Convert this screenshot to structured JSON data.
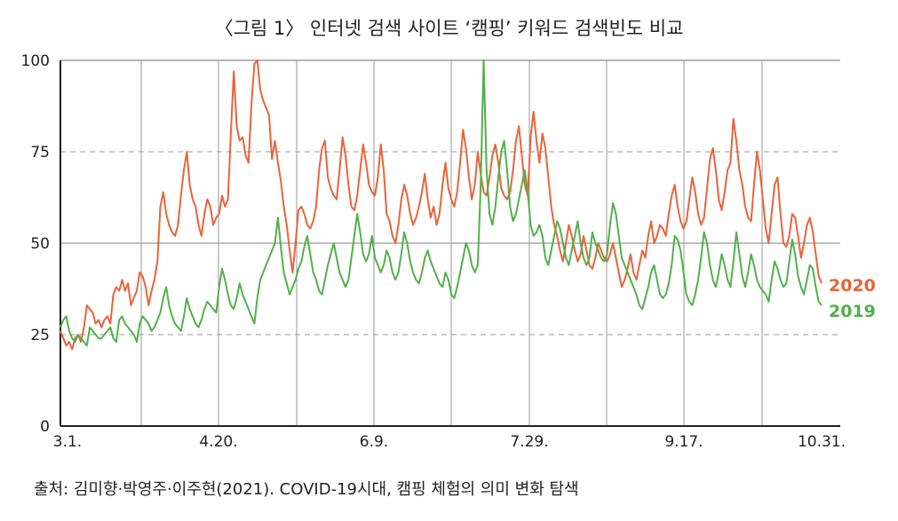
{
  "title": "〈그림 1〉 인터넷 검색 사이트 ‘캠핑’ 키워드 검색빈도 비교",
  "source": "출처: 김미향·박영주·이주현(2021). COVID-19시대, 캠핑 체험의 의미 변화 탐색",
  "colors": {
    "2020": "#e8643a",
    "2019": "#52b04a",
    "grid": "#999999"
  },
  "chart_data": {
    "type": "line",
    "title": "〈그림 1〉 인터넷 검색 사이트 ‘캠핑’ 키워드 검색빈도 비교",
    "xlabel": "",
    "ylabel": "",
    "ylim": [
      0,
      100
    ],
    "yticks": [
      0,
      25,
      50,
      75,
      100
    ],
    "x_tick_labels": [
      "3.1.",
      "4.20.",
      "6.9.",
      "7.29.",
      "9.17.",
      "10.31."
    ],
    "x_range_days": [
      0,
      244
    ],
    "grid": true,
    "legend": "right-end-labels",
    "series": [
      {
        "name": "2020",
        "color": "#e8643a",
        "values": [
          26,
          24,
          22,
          23,
          21,
          24,
          25,
          23,
          27,
          33,
          32,
          31,
          28,
          29,
          27,
          29,
          30,
          28,
          36,
          38,
          37,
          40,
          37,
          39,
          33,
          35,
          37,
          42,
          41,
          38,
          33,
          37,
          40,
          45,
          60,
          64,
          58,
          55,
          53,
          52,
          55,
          63,
          70,
          75,
          66,
          62,
          60,
          55,
          52,
          58,
          62,
          60,
          55,
          57,
          58,
          63,
          60,
          62,
          80,
          97,
          82,
          78,
          79,
          74,
          72,
          88,
          99,
          100,
          92,
          89,
          87,
          85,
          73,
          78,
          72,
          67,
          60,
          55,
          48,
          42,
          50,
          59,
          60,
          58,
          55,
          54,
          56,
          60,
          70,
          76,
          78,
          68,
          65,
          63,
          62,
          70,
          79,
          74,
          66,
          60,
          59,
          63,
          70,
          77,
          72,
          66,
          64,
          63,
          68,
          77,
          70,
          58,
          56,
          52,
          50,
          55,
          62,
          66,
          63,
          58,
          55,
          57,
          60,
          64,
          69,
          62,
          57,
          60,
          55,
          58,
          66,
          72,
          65,
          62,
          60,
          64,
          72,
          81,
          76,
          68,
          62,
          66,
          75,
          69,
          64,
          63,
          68,
          74,
          77,
          72,
          65,
          63,
          62,
          64,
          70,
          78,
          82,
          74,
          66,
          63,
          79,
          86,
          78,
          72,
          80,
          76,
          68,
          60,
          55,
          52,
          48,
          45,
          50,
          55,
          52,
          48,
          45,
          47,
          52,
          48,
          44,
          43,
          46,
          50,
          48,
          46,
          45,
          47,
          50,
          46,
          42,
          38,
          40,
          43,
          47,
          42,
          40,
          44,
          48,
          46,
          52,
          56,
          50,
          52,
          55,
          54,
          52,
          58,
          63,
          66,
          60,
          56,
          54,
          56,
          62,
          68,
          64,
          58,
          55,
          57,
          65,
          73,
          76,
          70,
          62,
          59,
          64,
          70,
          72,
          84,
          78,
          70,
          66,
          60,
          57,
          56,
          66,
          75,
          70,
          62,
          54,
          50,
          58,
          66,
          68,
          58,
          50,
          49,
          52,
          58,
          57,
          52,
          46,
          50,
          55,
          57,
          53,
          47,
          41,
          39
        ]
      },
      {
        "name": "2019",
        "color": "#52b04a",
        "values": [
          27,
          29,
          30,
          26,
          24,
          23,
          25,
          24,
          23,
          22,
          27,
          26,
          25,
          24,
          24,
          25,
          26,
          27,
          24,
          23,
          29,
          30,
          28,
          27,
          26,
          25,
          23,
          28,
          30,
          29,
          28,
          26,
          27,
          29,
          31,
          35,
          38,
          33,
          30,
          28,
          27,
          26,
          30,
          35,
          32,
          30,
          28,
          27,
          29,
          32,
          34,
          33,
          32,
          31,
          38,
          43,
          40,
          36,
          33,
          32,
          35,
          39,
          36,
          34,
          32,
          30,
          28,
          35,
          40,
          42,
          44,
          46,
          48,
          50,
          57,
          49,
          42,
          39,
          36,
          38,
          40,
          43,
          45,
          49,
          52,
          47,
          42,
          40,
          37,
          36,
          40,
          44,
          47,
          50,
          46,
          42,
          40,
          38,
          40,
          46,
          52,
          58,
          53,
          47,
          45,
          47,
          52,
          46,
          44,
          42,
          44,
          48,
          46,
          42,
          40,
          42,
          47,
          53,
          50,
          45,
          42,
          40,
          39,
          42,
          46,
          48,
          45,
          43,
          41,
          39,
          38,
          42,
          40,
          36,
          35,
          38,
          42,
          46,
          50,
          48,
          44,
          42,
          44,
          66,
          100,
          70,
          58,
          55,
          60,
          68,
          75,
          78,
          70,
          60,
          56,
          58,
          62,
          66,
          70,
          64,
          55,
          52,
          53,
          55,
          52,
          46,
          44,
          48,
          52,
          56,
          54,
          50,
          46,
          44,
          48,
          52,
          56,
          50,
          46,
          44,
          46,
          53,
          50,
          48,
          46,
          45,
          47,
          55,
          61,
          58,
          52,
          46,
          44,
          42,
          40,
          38,
          36,
          33,
          32,
          35,
          38,
          42,
          44,
          40,
          36,
          35,
          36,
          39,
          44,
          52,
          51,
          48,
          42,
          36,
          34,
          33,
          36,
          40,
          46,
          53,
          50,
          44,
          40,
          38,
          42,
          47,
          44,
          40,
          38,
          45,
          53,
          47,
          41,
          38,
          42,
          47,
          44,
          40,
          38,
          37,
          36,
          34,
          40,
          45,
          43,
          40,
          38,
          39,
          45,
          51,
          47,
          41,
          38,
          36,
          40,
          44,
          43,
          38,
          34,
          33
        ]
      }
    ]
  }
}
